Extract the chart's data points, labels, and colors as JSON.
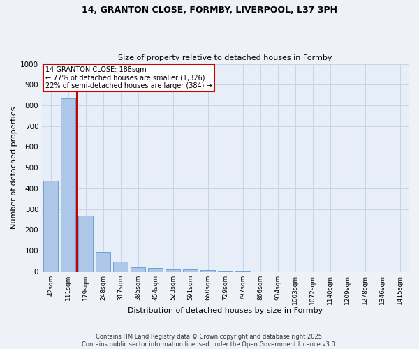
{
  "title_line1": "14, GRANTON CLOSE, FORMBY, LIVERPOOL, L37 3PH",
  "title_line2": "Size of property relative to detached houses in Formby",
  "xlabel": "Distribution of detached houses by size in Formby",
  "ylabel": "Number of detached properties",
  "categories": [
    "42sqm",
    "111sqm",
    "179sqm",
    "248sqm",
    "317sqm",
    "385sqm",
    "454sqm",
    "523sqm",
    "591sqm",
    "660sqm",
    "729sqm",
    "797sqm",
    "866sqm",
    "934sqm",
    "1003sqm",
    "1072sqm",
    "1140sqm",
    "1209sqm",
    "1278sqm",
    "1346sqm",
    "1415sqm"
  ],
  "values": [
    437,
    833,
    270,
    95,
    47,
    20,
    15,
    10,
    8,
    5,
    3,
    2,
    1,
    1,
    0,
    0,
    0,
    0,
    0,
    0,
    0
  ],
  "bar_color": "#aec6e8",
  "bar_edge_color": "#5b9bd5",
  "annotation_text_line1": "14 GRANTON CLOSE: 188sqm",
  "annotation_text_line2": "← 77% of detached houses are smaller (1,326)",
  "annotation_text_line3": "22% of semi-detached houses are larger (384) →",
  "vline_color": "#cc0000",
  "box_edge_color": "#cc0000",
  "grid_color": "#c8d4e8",
  "background_color": "#e8eef8",
  "fig_background_color": "#eef2f8",
  "footer": "Contains HM Land Registry data © Crown copyright and database right 2025.\nContains public sector information licensed under the Open Government Licence v3.0.",
  "ylim": [
    0,
    1000
  ],
  "yticks": [
    0,
    100,
    200,
    300,
    400,
    500,
    600,
    700,
    800,
    900,
    1000
  ],
  "vline_x": 1.5
}
